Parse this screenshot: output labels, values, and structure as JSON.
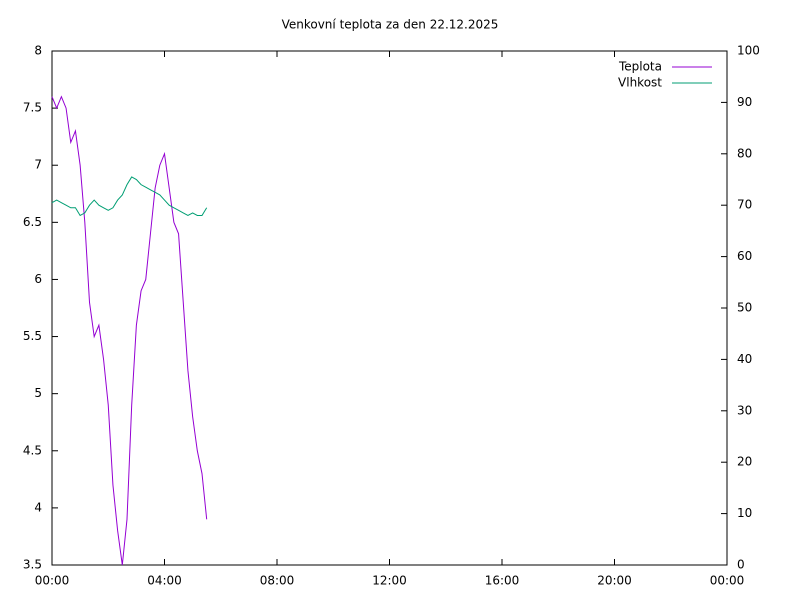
{
  "chart_data": {
    "type": "line",
    "title": "Venkovní teplota za den 22.12.2025",
    "x": [
      0,
      10,
      20,
      30,
      40,
      50,
      60,
      70,
      80,
      90,
      100,
      110,
      120,
      130,
      140,
      150,
      160,
      170,
      180,
      190,
      200,
      210,
      220,
      230,
      240,
      250,
      260,
      270,
      280,
      290,
      300,
      310,
      320,
      330
    ],
    "xlim": [
      0,
      1440
    ],
    "xticks": [
      {
        "value": 0,
        "label": "00:00"
      },
      {
        "value": 240,
        "label": "04:00"
      },
      {
        "value": 480,
        "label": "08:00"
      },
      {
        "value": 720,
        "label": "12:00"
      },
      {
        "value": 960,
        "label": "16:00"
      },
      {
        "value": 1200,
        "label": "20:00"
      },
      {
        "value": 1440,
        "label": "00:00"
      }
    ],
    "ylim": [
      3.5,
      8
    ],
    "yticks": [
      3.5,
      4,
      4.5,
      5,
      5.5,
      6,
      6.5,
      7,
      7.5,
      8
    ],
    "y2lim": [
      0,
      100
    ],
    "y2ticks": [
      0,
      10,
      20,
      30,
      40,
      50,
      60,
      70,
      80,
      90,
      100
    ],
    "legend": "top-right",
    "series": [
      {
        "name": "Teplota",
        "color": "#9400d3",
        "values": [
          7.6,
          7.5,
          7.6,
          7.5,
          7.2,
          7.3,
          7.0,
          6.5,
          5.8,
          5.5,
          5.6,
          5.3,
          4.9,
          4.2,
          3.8,
          3.5,
          3.9,
          4.9,
          5.6,
          5.9,
          6.0,
          6.4,
          6.8,
          7.0,
          7.1,
          6.8,
          6.5,
          6.4,
          5.8,
          5.2,
          4.8,
          4.5,
          4.3,
          3.9
        ]
      },
      {
        "name": "Vlhkost",
        "color": "#009e73",
        "axis": "y2",
        "values": [
          70.5,
          71,
          70.5,
          70,
          69.5,
          69.5,
          68,
          68.5,
          70,
          71,
          70,
          69.5,
          69,
          69.5,
          71,
          72,
          74,
          75.5,
          75,
          74,
          73.5,
          73,
          72.5,
          72,
          71,
          70,
          69.5,
          69,
          68.5,
          68,
          68.5,
          68,
          68,
          69.5
        ]
      }
    ]
  }
}
